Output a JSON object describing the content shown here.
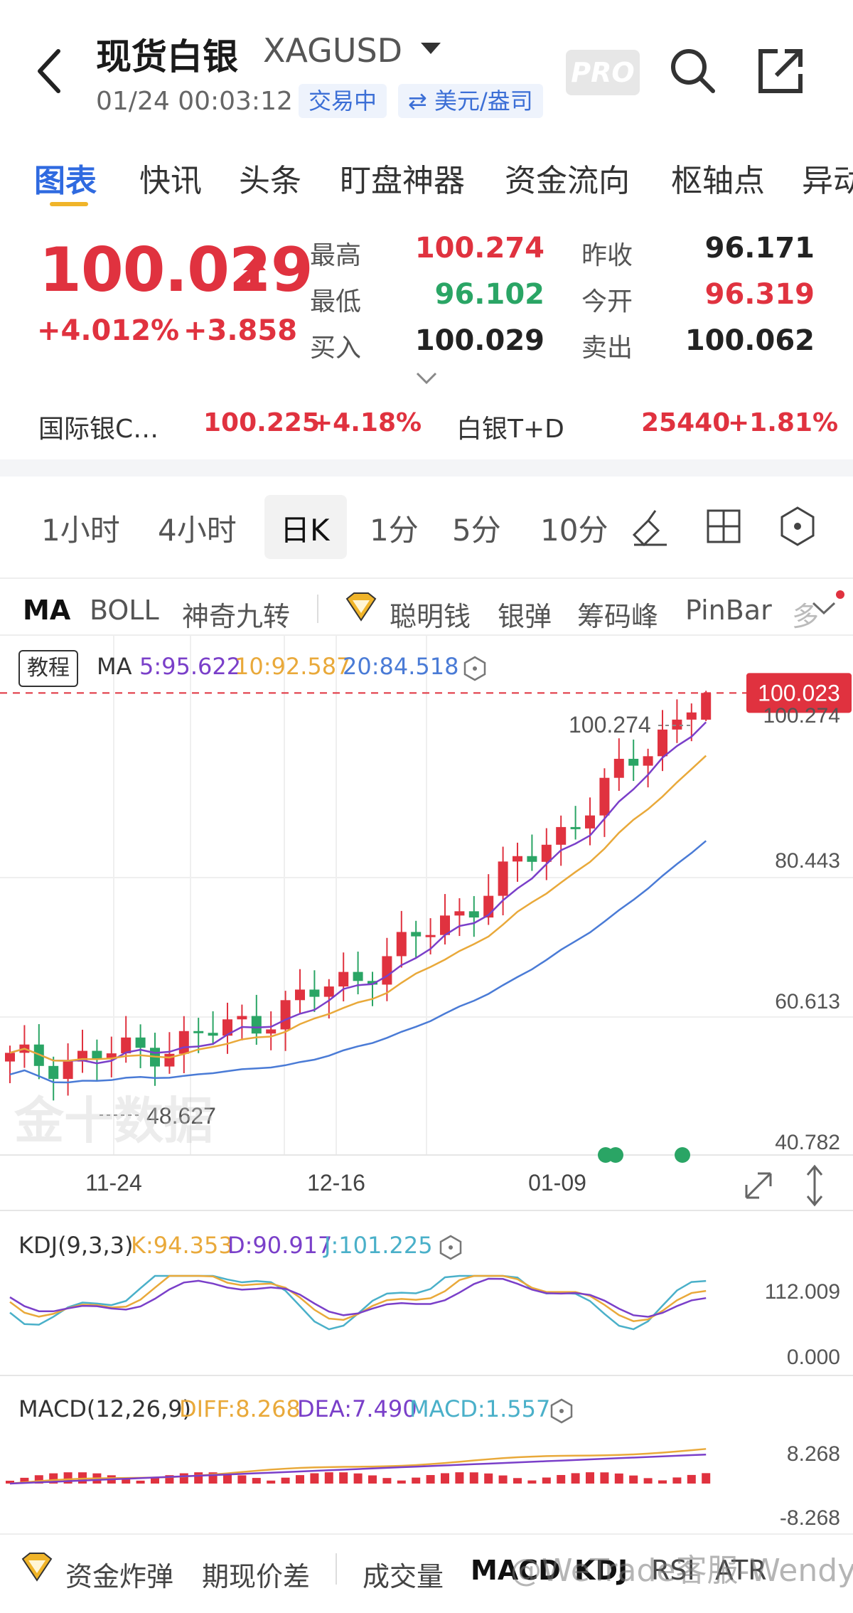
{
  "header": {
    "title": "现货白银",
    "symbol": "XAGUSD",
    "datetime": "01/24 00:03:12",
    "status_badge": "交易中",
    "unit_badge": "⇄ 美元/盎司",
    "pro_label": "PRO"
  },
  "tabs": [
    {
      "label": "图表",
      "active": true
    },
    {
      "label": "快讯"
    },
    {
      "label": "头条"
    },
    {
      "label": "盯盘神器"
    },
    {
      "label": "资金流向"
    },
    {
      "label": "枢轴点"
    },
    {
      "label": "异动"
    }
  ],
  "quote": {
    "price": "100.029",
    "change_pct": "+4.012%",
    "change_abs": "+3.858",
    "high_label": "最高",
    "high": "100.274",
    "low_label": "最低",
    "low": "96.102",
    "bid_label": "买入",
    "bid": "100.029",
    "prev_close_label": "昨收",
    "prev_close": "96.171",
    "open_label": "今开",
    "open": "96.319",
    "ask_label": "卖出",
    "ask": "100.062"
  },
  "related": [
    {
      "name": "国际银C…",
      "price": "100.225",
      "change": "+4.18%"
    },
    {
      "name": "白银T+D",
      "price": "25440",
      "change": "+1.81%"
    }
  ],
  "periods": [
    {
      "label": "1小时"
    },
    {
      "label": "4小时"
    },
    {
      "label": "日K",
      "active": true
    },
    {
      "label": "1分"
    },
    {
      "label": "5分"
    },
    {
      "label": "10分"
    }
  ],
  "indicators": [
    {
      "label": "MA",
      "active": true
    },
    {
      "label": "BOLL"
    },
    {
      "label": "神奇九转"
    },
    {
      "label": "聪明钱"
    },
    {
      "label": "银弹"
    },
    {
      "label": "筹码峰"
    },
    {
      "label": "PinBar"
    },
    {
      "label": "多"
    }
  ],
  "main_chart": {
    "tutorial_label": "教程",
    "ma_title": "MA",
    "ma5": "5:95.622",
    "ma10": "10:92.587",
    "ma20": "20:84.518",
    "high_marker": "100.274",
    "low_marker": "48.627",
    "current_price_tag": "100.023",
    "y_ticks": [
      "100.274",
      "80.443",
      "60.613",
      "40.782"
    ],
    "x_ticks": [
      "11-24",
      "12-16",
      "01-09"
    ],
    "colors": {
      "up": "#e0323f",
      "down": "#2aa565",
      "ma5": "#7a3fc9",
      "ma10": "#e9a93a",
      "ma20": "#4a7bd6"
    }
  },
  "kdj": {
    "title": "KDJ(9,3,3)",
    "k": "K:94.353",
    "d": "D:90.917",
    "j": "J:101.225",
    "y_ticks": [
      "112.009",
      "0.000"
    ]
  },
  "macd": {
    "title": "MACD(12,26,9)",
    "diff": "DIFF:8.268",
    "dea": "DEA:7.490",
    "macd": "MACD:1.557",
    "y_ticks": [
      "8.268",
      "-8.268"
    ]
  },
  "bottom_bar": {
    "items": [
      {
        "label": "资金炸弹"
      },
      {
        "label": "期现价差"
      },
      {
        "label": "成交量"
      },
      {
        "label": "MACD",
        "active": true
      },
      {
        "label": "KDJ"
      },
      {
        "label": "RSI"
      },
      {
        "label": "ATR"
      }
    ],
    "watermark": "@WeTrade客服-Wendy"
  },
  "chart_watermark": "金十数据"
}
